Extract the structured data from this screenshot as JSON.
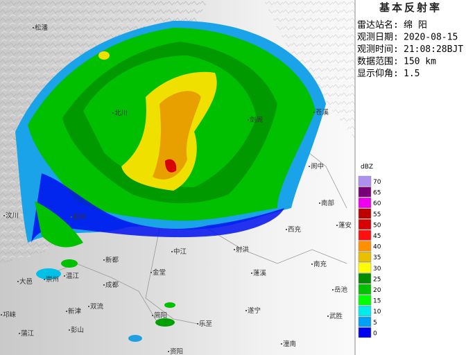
{
  "panel": {
    "title": "基本反射率",
    "rows": [
      {
        "label": "雷达站名:",
        "value": "绵 阳"
      },
      {
        "label": "观测日期:",
        "value": "2020-08-15"
      },
      {
        "label": "观测时间:",
        "value": "21:08:28BJT"
      },
      {
        "label": "数据范围:",
        "value": "150 km"
      },
      {
        "label": "显示仰角:",
        "value": "1.5"
      }
    ]
  },
  "legend": {
    "unit": "dBZ",
    "items": [
      {
        "value": 70,
        "color": "#ad90f0"
      },
      {
        "value": 65,
        "color": "#7a007a"
      },
      {
        "value": 60,
        "color": "#ee00ee"
      },
      {
        "value": 55,
        "color": "#c00000"
      },
      {
        "value": 50,
        "color": "#d80000"
      },
      {
        "value": 45,
        "color": "#ff1010"
      },
      {
        "value": 40,
        "color": "#ff9000"
      },
      {
        "value": 35,
        "color": "#e8c000"
      },
      {
        "value": 30,
        "color": "#ffff00"
      },
      {
        "value": 25,
        "color": "#008c00"
      },
      {
        "value": 20,
        "color": "#00c000"
      },
      {
        "value": 15,
        "color": "#00ff00"
      },
      {
        "value": 10,
        "color": "#00ecec"
      },
      {
        "value": 5,
        "color": "#00a0f6"
      },
      {
        "value": 0,
        "color": "#0000f0"
      }
    ]
  },
  "map": {
    "places": [
      "松潘",
      "北川",
      "剑阁",
      "苍溪",
      "阆中",
      "南部",
      "西充",
      "蓬安",
      "汶川",
      "彭州",
      "新都",
      "中江",
      "射洪",
      "南充",
      "金堂",
      "成都",
      "蓬溪",
      "岳池",
      "大邑",
      "崇州",
      "温江",
      "双流",
      "新津",
      "邛崃",
      "彭山",
      "简阳",
      "乐至",
      "遂宁",
      "武胜",
      "潼南",
      "蒲江",
      "资阳"
    ]
  }
}
